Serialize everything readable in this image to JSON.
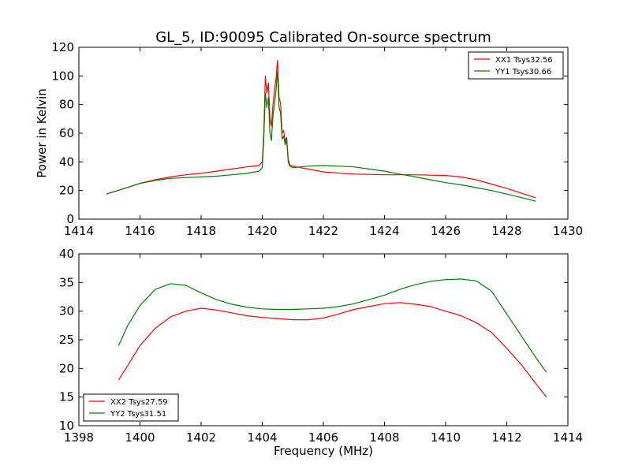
{
  "figure": {
    "title": "GL_5, ID:90095 Calibrated On-source spectrum"
  },
  "chart_data": [
    {
      "type": "line",
      "title": "GL_5, ID:90095 Calibrated On-source spectrum",
      "xlabel": "",
      "ylabel": "Power in Kelvin",
      "xlim": [
        1414,
        1430
      ],
      "ylim": [
        0,
        120
      ],
      "xticks": [
        1414,
        1416,
        1418,
        1420,
        1422,
        1424,
        1426,
        1428,
        1430
      ],
      "yticks": [
        0,
        20,
        40,
        60,
        80,
        100,
        120
      ],
      "grid": false,
      "legend": "top-right",
      "series": [
        {
          "name": "XX1 Tsys32.56",
          "color": "#ff0000",
          "x": [
            1414.9,
            1415.5,
            1416,
            1416.5,
            1417,
            1417.5,
            1418,
            1418.5,
            1419,
            1419.5,
            1419.9,
            1420.0,
            1420.05,
            1420.1,
            1420.15,
            1420.2,
            1420.25,
            1420.3,
            1420.35,
            1420.4,
            1420.45,
            1420.5,
            1420.55,
            1420.6,
            1420.65,
            1420.7,
            1420.75,
            1420.8,
            1420.85,
            1420.9,
            1421.0,
            1421.5,
            1422,
            1423,
            1424,
            1425,
            1426,
            1426.5,
            1427,
            1427.5,
            1428,
            1428.5,
            1428.95
          ],
          "y": [
            17.5,
            21.5,
            25,
            27.5,
            29.5,
            31,
            32,
            33.5,
            35,
            36.5,
            37.5,
            40,
            60,
            100,
            88,
            95,
            70,
            65,
            80,
            90,
            98,
            111,
            85,
            81,
            60,
            62,
            54,
            57,
            42,
            38,
            37,
            35,
            33,
            31.5,
            31,
            31,
            30.5,
            29.5,
            27.5,
            24.5,
            21.5,
            18,
            15
          ]
        },
        {
          "name": "YY1 Tsys30.66",
          "color": "#008000",
          "x": [
            1414.9,
            1415.5,
            1416,
            1416.5,
            1417,
            1417.5,
            1418,
            1418.5,
            1419,
            1419.5,
            1419.9,
            1420.0,
            1420.05,
            1420.1,
            1420.15,
            1420.2,
            1420.25,
            1420.3,
            1420.35,
            1420.4,
            1420.45,
            1420.5,
            1420.55,
            1420.6,
            1420.65,
            1420.7,
            1420.75,
            1420.8,
            1420.85,
            1420.9,
            1421.0,
            1421.5,
            1422,
            1422.5,
            1423,
            1423.5,
            1424,
            1424.5,
            1425,
            1425.5,
            1426,
            1426.5,
            1427,
            1427.5,
            1428,
            1428.5,
            1428.95
          ],
          "y": [
            17.5,
            21.5,
            25,
            27,
            28.5,
            29,
            29.5,
            30,
            31,
            32,
            33.5,
            36,
            55,
            88,
            78,
            85,
            60,
            55,
            72,
            80,
            90,
            103,
            78,
            74,
            56,
            58,
            52,
            55,
            40,
            37,
            36,
            37,
            37.5,
            37,
            36.5,
            35,
            33.5,
            31.5,
            29.5,
            27.5,
            25.5,
            24,
            22,
            20,
            17.5,
            15,
            12.5
          ]
        }
      ]
    },
    {
      "type": "line",
      "title": "",
      "xlabel": "Frequency (MHz)",
      "ylabel": "",
      "xlim": [
        1398,
        1414
      ],
      "ylim": [
        10,
        40
      ],
      "xticks": [
        1398,
        1400,
        1402,
        1404,
        1406,
        1408,
        1410,
        1412,
        1414
      ],
      "yticks": [
        10,
        15,
        20,
        25,
        30,
        35,
        40
      ],
      "grid": false,
      "legend": "bottom-left",
      "series": [
        {
          "name": "XX2 Tsys27.59",
          "color": "#ff0000",
          "x": [
            1399.3,
            1399.6,
            1400,
            1400.5,
            1401,
            1401.5,
            1402,
            1402.5,
            1403,
            1403.5,
            1404,
            1404.5,
            1405,
            1405.5,
            1406,
            1406.5,
            1407,
            1407.5,
            1408,
            1408.5,
            1409,
            1409.5,
            1410,
            1410.5,
            1411,
            1411.5,
            1412,
            1412.5,
            1413,
            1413.3
          ],
          "y": [
            18,
            20.5,
            24,
            27,
            29,
            30,
            30.5,
            30.2,
            29.7,
            29.2,
            28.9,
            28.7,
            28.5,
            28.5,
            28.8,
            29.5,
            30.3,
            30.8,
            31.3,
            31.5,
            31.2,
            30.8,
            30,
            29.2,
            28,
            26.3,
            23.5,
            20.5,
            17,
            15
          ]
        },
        {
          "name": "YY2 Tsys31.51",
          "color": "#008000",
          "x": [
            1399.3,
            1399.6,
            1400,
            1400.5,
            1401,
            1401.5,
            1402,
            1402.5,
            1403,
            1403.5,
            1404,
            1404.5,
            1405,
            1405.5,
            1406,
            1406.5,
            1407,
            1407.5,
            1408,
            1408.5,
            1409,
            1409.5,
            1410,
            1410.5,
            1411,
            1411.5,
            1412,
            1412.5,
            1413,
            1413.3
          ],
          "y": [
            24,
            27.5,
            31,
            33.8,
            34.8,
            34.5,
            33.2,
            32,
            31.2,
            30.7,
            30.4,
            30.3,
            30.3,
            30.4,
            30.5,
            30.8,
            31.3,
            32,
            32.8,
            33.8,
            34.6,
            35.2,
            35.5,
            35.6,
            35.3,
            33.5,
            29.5,
            25.5,
            21.5,
            19.3
          ]
        }
      ]
    }
  ]
}
